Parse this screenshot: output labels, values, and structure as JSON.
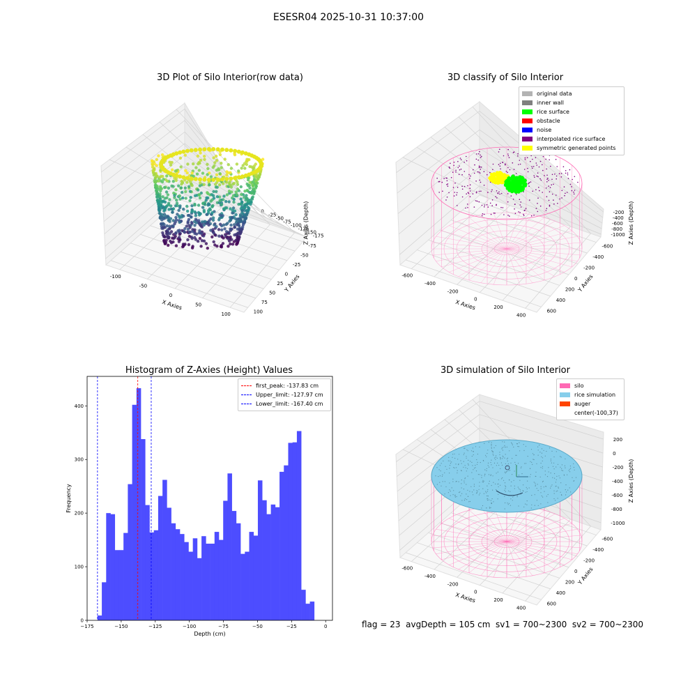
{
  "suptitle": "ESESR04 2025-10-31 10:37:00",
  "footer": "flag = 23  avgDepth = 105 cm  sv1 = 700~2300  sv2 = 700~2300",
  "chart_data": [
    {
      "type": "scatter",
      "subtype": "3d",
      "title": "3D Plot of Silo Interior(row data)",
      "xlabel": "X Axies",
      "ylabel": "Y Axies",
      "zlabel": "Z Axies (Depth)",
      "xticks": [
        "-100",
        "-50",
        "0",
        "50",
        "100"
      ],
      "yticks": [
        "-75",
        "-50",
        "-25",
        "0",
        "25",
        "50",
        "75",
        "100"
      ],
      "zticks": [
        "0",
        "-25",
        "-50",
        "-75",
        "-100",
        "-125",
        "-150",
        "-175"
      ],
      "colormap": "viridis"
    },
    {
      "type": "scatter",
      "subtype": "3d",
      "title": "3D classify of Silo Interior",
      "xlabel": "X Axies",
      "ylabel": "Y Axies",
      "zlabel": "Z Axies (Depth)",
      "xticks": [
        "-600",
        "-400",
        "-200",
        "0",
        "200",
        "400"
      ],
      "yticks": [
        "-600",
        "-400",
        "-200",
        "0",
        "200",
        "400",
        "600"
      ],
      "zticks": [
        "-200",
        "-400",
        "-600",
        "-800",
        "-1000"
      ],
      "legend_position": "top-right",
      "legend": [
        {
          "label": "original data",
          "color": "#b3b3b3"
        },
        {
          "label": "inner wall",
          "color": "#808080"
        },
        {
          "label": "rice surface",
          "color": "#00ff00"
        },
        {
          "label": "obstacle",
          "color": "#ff0000"
        },
        {
          "label": "noise",
          "color": "#0000ff"
        },
        {
          "label": "interpolated rice surface",
          "color": "#800080"
        },
        {
          "label": "symmetric generated points",
          "color": "#ffff00"
        }
      ]
    },
    {
      "type": "bar",
      "subtype": "histogram",
      "title": "Histogram of Z-Axies (Height) Values",
      "xlabel": "Depth (cm)",
      "ylabel": "Frequency",
      "xlim": [
        -175,
        5
      ],
      "ylim": [
        0,
        455
      ],
      "xticks": [
        -175,
        -150,
        -125,
        -100,
        -75,
        -50,
        -25,
        0
      ],
      "yticks": [
        0,
        100,
        200,
        300,
        400
      ],
      "bin_start": -167.4,
      "bin_width": 3.18,
      "values": [
        9,
        71,
        200,
        198,
        131,
        131,
        163,
        254,
        402,
        433,
        338,
        215,
        164,
        168,
        232,
        262,
        210,
        181,
        170,
        161,
        146,
        128,
        153,
        116,
        157,
        143,
        143,
        165,
        150,
        223,
        274,
        204,
        181,
        124,
        128,
        165,
        158,
        261,
        224,
        198,
        216,
        211,
        277,
        289,
        331,
        332,
        353,
        57,
        31,
        35
      ],
      "bar_color": "#4d4dff",
      "vlines": [
        {
          "x": -137.83,
          "color": "#ff0000",
          "label": "first_peak: -137.83 cm"
        },
        {
          "x": -127.97,
          "color": "#0000ff",
          "label": "Upper_limit: -127.97 cm"
        },
        {
          "x": -167.4,
          "color": "#0000ff",
          "label": "Lower_limit: -167.40 cm"
        }
      ],
      "legend_position": "top-right"
    },
    {
      "type": "scatter",
      "subtype": "3d",
      "title": "3D simulation of Silo Interior",
      "xlabel": "X Axies",
      "ylabel": "Y Axies",
      "zlabel": "Z Axies (Depth)",
      "xticks": [
        "-600",
        "-400",
        "-200",
        "0",
        "200",
        "400"
      ],
      "yticks": [
        "-600",
        "-400",
        "-200",
        "0",
        "200",
        "400",
        "600"
      ],
      "zticks": [
        "200",
        "0",
        "-200",
        "-400",
        "-600",
        "-800",
        "-1000"
      ],
      "legend_position": "top-right",
      "legend": [
        {
          "label": "silo",
          "color": "#ff69b4"
        },
        {
          "label": "rice simulation",
          "color": "#87ceeb"
        },
        {
          "label": "auger",
          "color": "#ff4500"
        },
        {
          "label": "center(-100,37)",
          "color": ""
        }
      ]
    }
  ]
}
